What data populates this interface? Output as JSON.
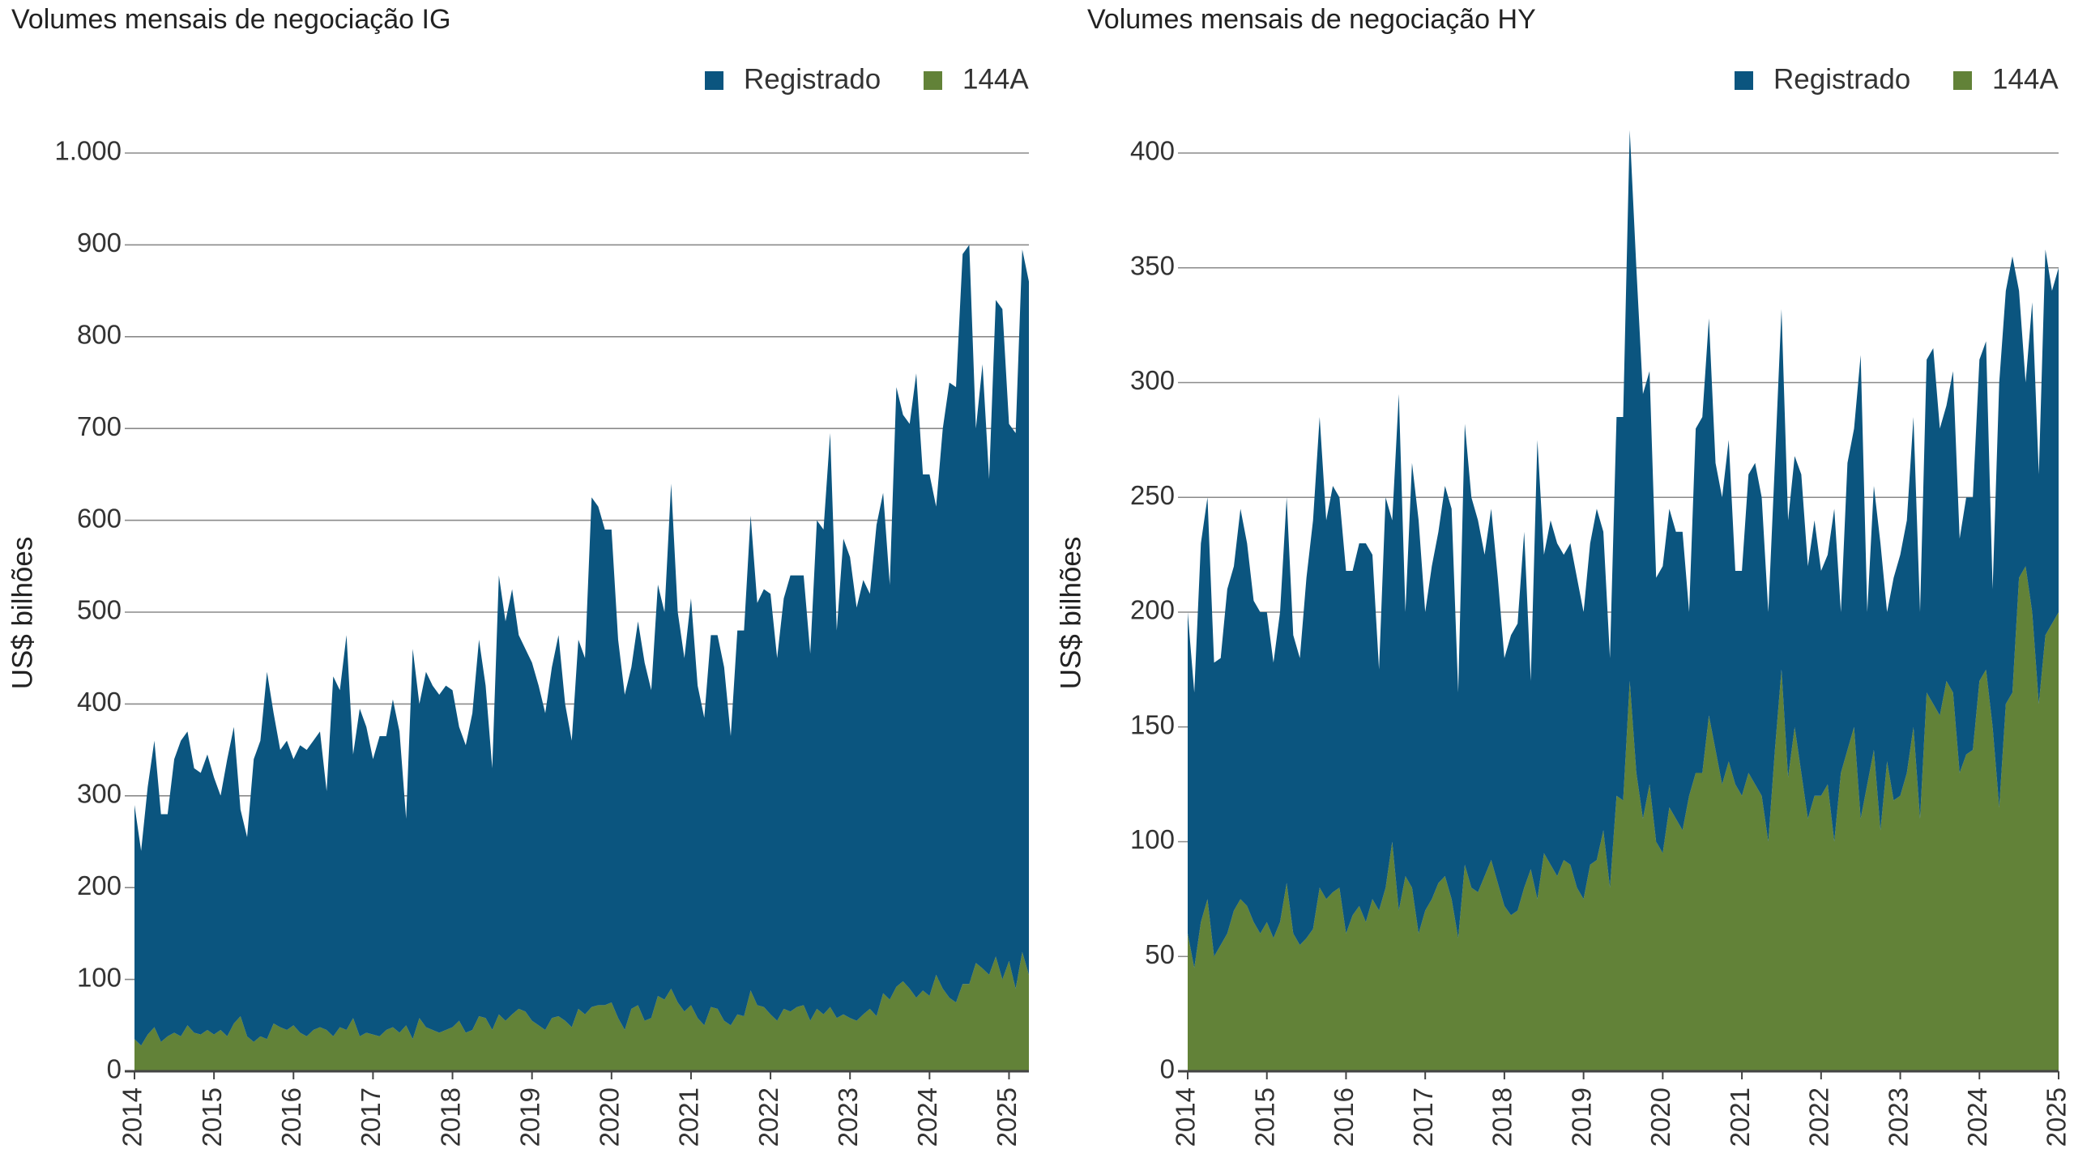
{
  "chart_data": [
    {
      "type": "stacked_area",
      "title": "Volumes mensais de negociação IG",
      "y_label": "US$ bilhões",
      "legend": "top-right",
      "grid": true,
      "categories": [
        "2014",
        null,
        null,
        null,
        null,
        null,
        null,
        null,
        null,
        null,
        null,
        null,
        "2015",
        null,
        null,
        null,
        null,
        null,
        null,
        null,
        null,
        null,
        null,
        null,
        "2016",
        null,
        null,
        null,
        null,
        null,
        null,
        null,
        null,
        null,
        null,
        null,
        "2017",
        null,
        null,
        null,
        null,
        null,
        null,
        null,
        null,
        null,
        null,
        null,
        "2018",
        null,
        null,
        null,
        null,
        null,
        null,
        null,
        null,
        null,
        null,
        null,
        "2019",
        null,
        null,
        null,
        null,
        null,
        null,
        null,
        null,
        null,
        null,
        null,
        "2020",
        null,
        null,
        null,
        null,
        null,
        null,
        null,
        null,
        null,
        null,
        null,
        "2021",
        null,
        null,
        null,
        null,
        null,
        null,
        null,
        null,
        null,
        null,
        null,
        "2022",
        null,
        null,
        null,
        null,
        null,
        null,
        null,
        null,
        null,
        null,
        null,
        "2023",
        null,
        null,
        null,
        null,
        null,
        null,
        null,
        null,
        null,
        null,
        null,
        "2024",
        null,
        null,
        null,
        null,
        null,
        null,
        null,
        null,
        null,
        null,
        null,
        "2025",
        null,
        null,
        null
      ],
      "ylim": [
        0,
        1000
      ],
      "yticks": [
        0,
        100,
        200,
        300,
        400,
        500,
        600,
        700,
        800,
        900,
        {
          "value": 1000,
          "label": "1.000"
        }
      ],
      "series": [
        {
          "name": "Registrado",
          "color": "#0b557f",
          "values": [
            255,
            212,
            270,
            312,
            248,
            242,
            298,
            322,
            320,
            288,
            285,
            300,
            280,
            255,
            302,
            323,
            225,
            217,
            308,
            322,
            400,
            338,
            302,
            315,
            290,
            313,
            312,
            315,
            322,
            260,
            392,
            367,
            430,
            287,
            357,
            333,
            300,
            327,
            320,
            357,
            328,
            225,
            425,
            342,
            387,
            375,
            368,
            375,
            367,
            320,
            313,
            345,
            410,
            362,
            285,
            478,
            435,
            463,
            407,
            395,
            390,
            370,
            345,
            382,
            415,
            345,
            312,
            402,
            388,
            555,
            543,
            518,
            515,
            412,
            365,
            372,
            418,
            390,
            357,
            448,
            422,
            550,
            425,
            385,
            443,
            362,
            335,
            405,
            407,
            385,
            315,
            418,
            420,
            517,
            438,
            455,
            458,
            395,
            447,
            475,
            470,
            468,
            400,
            532,
            528,
            625,
            422,
            518,
            502,
            450,
            473,
            452,
            535,
            545,
            452,
            653,
            617,
            615,
            680,
            562,
            568,
            510,
            610,
            670,
            670,
            795,
            805,
            582,
            658,
            540,
            715,
            730,
            585,
            605,
            765,
            755
          ]
        },
        {
          "name": "144A",
          "color": "#628238",
          "values": [
            35,
            28,
            40,
            48,
            32,
            38,
            42,
            38,
            50,
            42,
            40,
            45,
            40,
            45,
            38,
            52,
            60,
            38,
            32,
            38,
            35,
            52,
            48,
            45,
            50,
            42,
            38,
            45,
            48,
            45,
            38,
            48,
            45,
            58,
            38,
            42,
            40,
            38,
            45,
            48,
            42,
            50,
            35,
            58,
            48,
            45,
            42,
            45,
            48,
            55,
            42,
            45,
            60,
            58,
            45,
            62,
            55,
            62,
            68,
            65,
            55,
            50,
            45,
            58,
            60,
            55,
            48,
            68,
            62,
            70,
            72,
            72,
            75,
            58,
            45,
            68,
            72,
            55,
            58,
            82,
            78,
            90,
            75,
            65,
            72,
            58,
            50,
            70,
            68,
            55,
            50,
            62,
            60,
            88,
            72,
            70,
            62,
            55,
            68,
            65,
            70,
            72,
            55,
            68,
            62,
            70,
            58,
            62,
            58,
            55,
            62,
            68,
            60,
            85,
            78,
            92,
            98,
            90,
            80,
            88,
            82,
            105,
            90,
            80,
            75,
            95,
            95,
            118,
            112,
            105,
            125,
            100,
            120,
            90,
            130,
            105
          ]
        }
      ]
    },
    {
      "type": "stacked_area",
      "title": "Volumes mensais de negociação HY",
      "y_label": "US$ bilhões",
      "legend": "top-right",
      "grid": true,
      "categories": [
        "2014",
        null,
        null,
        null,
        null,
        null,
        null,
        null,
        null,
        null,
        null,
        null,
        "2015",
        null,
        null,
        null,
        null,
        null,
        null,
        null,
        null,
        null,
        null,
        null,
        "2016",
        null,
        null,
        null,
        null,
        null,
        null,
        null,
        null,
        null,
        null,
        null,
        "2017",
        null,
        null,
        null,
        null,
        null,
        null,
        null,
        null,
        null,
        null,
        null,
        "2018",
        null,
        null,
        null,
        null,
        null,
        null,
        null,
        null,
        null,
        null,
        null,
        "2019",
        null,
        null,
        null,
        null,
        null,
        null,
        null,
        null,
        null,
        null,
        null,
        "2020",
        null,
        null,
        null,
        null,
        null,
        null,
        null,
        null,
        null,
        null,
        null,
        "2021",
        null,
        null,
        null,
        null,
        null,
        null,
        null,
        null,
        null,
        null,
        null,
        "2022",
        null,
        null,
        null,
        null,
        null,
        null,
        null,
        null,
        null,
        null,
        null,
        "2023",
        null,
        null,
        null,
        null,
        null,
        null,
        null,
        null,
        null,
        null,
        null,
        "2024",
        null,
        null,
        null,
        null,
        null,
        null,
        null,
        null,
        null,
        null,
        null,
        "2025"
      ],
      "ylim": [
        0,
        400
      ],
      "yticks": [
        0,
        50,
        100,
        150,
        200,
        250,
        300,
        350,
        400
      ],
      "series": [
        {
          "name": "Registrado",
          "color": "#0b557f",
          "values": [
            140,
            120,
            165,
            175,
            128,
            125,
            150,
            150,
            170,
            158,
            140,
            140,
            135,
            120,
            135,
            168,
            130,
            125,
            157,
            178,
            205,
            165,
            177,
            170,
            158,
            150,
            158,
            165,
            150,
            105,
            170,
            140,
            225,
            115,
            185,
            180,
            130,
            145,
            153,
            170,
            170,
            107,
            192,
            170,
            162,
            140,
            153,
            133,
            108,
            122,
            125,
            155,
            82,
            200,
            130,
            150,
            145,
            133,
            140,
            135,
            125,
            140,
            153,
            130,
            100,
            165,
            167,
            240,
            220,
            185,
            180,
            115,
            125,
            130,
            125,
            130,
            80,
            150,
            155,
            173,
            125,
            125,
            140,
            93,
            98,
            130,
            140,
            130,
            100,
            125,
            157,
            112,
            118,
            130,
            110,
            120,
            98,
            100,
            145,
            70,
            125,
            130,
            202,
            75,
            115,
            125,
            65,
            97,
            105,
            110,
            135,
            90,
            145,
            155,
            125,
            120,
            140,
            102,
            112,
            110,
            140,
            143,
            60,
            185,
            180,
            190,
            125,
            80,
            135,
            100,
            168,
            145,
            150
          ]
        },
        {
          "name": "144A",
          "color": "#628238",
          "values": [
            60,
            45,
            65,
            75,
            50,
            55,
            60,
            70,
            75,
            72,
            65,
            60,
            65,
            58,
            65,
            82,
            60,
            55,
            58,
            62,
            80,
            75,
            78,
            80,
            60,
            68,
            72,
            65,
            75,
            70,
            80,
            100,
            70,
            85,
            80,
            60,
            70,
            75,
            82,
            85,
            75,
            58,
            90,
            80,
            78,
            85,
            92,
            82,
            72,
            68,
            70,
            80,
            88,
            75,
            95,
            90,
            85,
            92,
            90,
            80,
            75,
            90,
            92,
            105,
            80,
            120,
            118,
            170,
            130,
            110,
            125,
            100,
            95,
            115,
            110,
            105,
            120,
            130,
            130,
            155,
            140,
            125,
            135,
            125,
            120,
            130,
            125,
            120,
            100,
            140,
            175,
            128,
            150,
            130,
            110,
            120,
            120,
            125,
            100,
            130,
            140,
            150,
            110,
            125,
            140,
            105,
            135,
            118,
            120,
            130,
            150,
            110,
            165,
            160,
            155,
            170,
            165,
            130,
            138,
            140,
            170,
            175,
            150,
            115,
            160,
            165,
            215,
            220,
            200,
            160,
            190,
            195,
            200
          ]
        }
      ]
    }
  ]
}
